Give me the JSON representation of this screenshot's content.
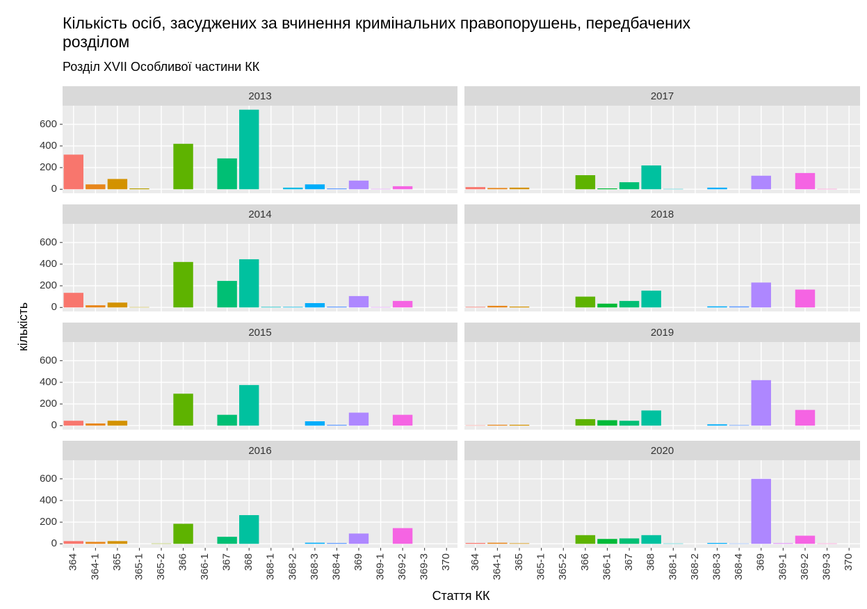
{
  "title": "Кількість осіб, засуджених за вчинення кримінальних правопорушень, передбачених розділом",
  "subtitle": "Розділ  XVII  Особливої частини КК",
  "chart_data": {
    "type": "bar",
    "x_label": "Стаття КК",
    "y_label": "кількість",
    "categories": [
      "364",
      "364-1",
      "365",
      "365-1",
      "365-2",
      "366",
      "366-1",
      "367",
      "368",
      "368-1",
      "368-2",
      "368-3",
      "368-4",
      "369",
      "369-1",
      "369-2",
      "369-3",
      "370"
    ],
    "colors": [
      "#F8766D",
      "#E7861B",
      "#D39200",
      "#B79F00",
      "#93AA00",
      "#5EB300",
      "#00BA38",
      "#00BF74",
      "#00C19F",
      "#00BFC4",
      "#00B9E3",
      "#00ADFA",
      "#619CFF",
      "#AE87FF",
      "#DB72FB",
      "#F564E3",
      "#FF61C3",
      "#FF699C"
    ],
    "ylim": [
      -37,
      772
    ],
    "yticks": [
      0,
      200,
      400,
      600
    ],
    "grid": true,
    "facets": [
      {
        "title": "2013",
        "values": [
          320,
          45,
          95,
          8,
          0,
          420,
          0,
          285,
          735,
          0,
          15,
          45,
          8,
          80,
          3,
          28,
          0,
          0
        ]
      },
      {
        "title": "2014",
        "values": [
          135,
          20,
          45,
          3,
          0,
          420,
          0,
          245,
          445,
          5,
          5,
          40,
          8,
          105,
          3,
          60,
          0,
          0
        ]
      },
      {
        "title": "2015",
        "values": [
          45,
          20,
          45,
          0,
          0,
          295,
          0,
          100,
          375,
          0,
          0,
          40,
          8,
          120,
          0,
          100,
          0,
          0
        ]
      },
      {
        "title": "2016",
        "values": [
          25,
          18,
          25,
          0,
          3,
          185,
          0,
          65,
          265,
          0,
          0,
          10,
          8,
          95,
          0,
          145,
          0,
          0
        ]
      },
      {
        "title": "2017",
        "values": [
          20,
          12,
          15,
          0,
          0,
          130,
          8,
          65,
          220,
          3,
          0,
          15,
          0,
          125,
          0,
          150,
          3,
          0
        ]
      },
      {
        "title": "2018",
        "values": [
          5,
          15,
          8,
          0,
          0,
          100,
          35,
          60,
          155,
          0,
          0,
          10,
          10,
          230,
          0,
          165,
          0,
          0
        ]
      },
      {
        "title": "2019",
        "values": [
          3,
          8,
          8,
          0,
          0,
          60,
          50,
          45,
          140,
          0,
          0,
          12,
          5,
          420,
          0,
          145,
          0,
          0
        ]
      },
      {
        "title": "2020",
        "values": [
          8,
          10,
          5,
          0,
          0,
          80,
          45,
          50,
          80,
          3,
          0,
          8,
          3,
          600,
          5,
          75,
          3,
          0
        ]
      }
    ]
  }
}
